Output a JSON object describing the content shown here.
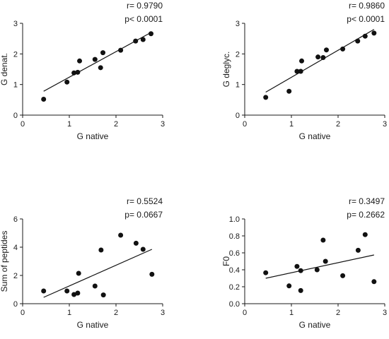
{
  "colors": {
    "background": "#ffffff",
    "axis": "#1a1a1a",
    "point": "#111111",
    "fit_line": "#111111"
  },
  "chart_data": [
    {
      "type": "scatter",
      "title": "",
      "xlabel": "G native",
      "ylabel": "G denat.",
      "xlim": [
        0,
        3
      ],
      "ylim": [
        0,
        3
      ],
      "xticks": [
        "0",
        "1",
        "2",
        "3"
      ],
      "yticks": [
        "0",
        "1",
        "2",
        "3"
      ],
      "points": [
        {
          "x": 0.45,
          "y": 0.52
        },
        {
          "x": 0.95,
          "y": 1.08
        },
        {
          "x": 1.1,
          "y": 1.38
        },
        {
          "x": 1.18,
          "y": 1.4
        },
        {
          "x": 1.22,
          "y": 1.77
        },
        {
          "x": 1.55,
          "y": 1.82
        },
        {
          "x": 1.67,
          "y": 1.55
        },
        {
          "x": 1.72,
          "y": 2.04
        },
        {
          "x": 2.1,
          "y": 2.12
        },
        {
          "x": 2.42,
          "y": 2.42
        },
        {
          "x": 2.58,
          "y": 2.47
        },
        {
          "x": 2.75,
          "y": 2.66
        }
      ],
      "fit": {
        "x": [
          0.45,
          2.75
        ],
        "y": [
          0.78,
          2.7
        ]
      },
      "annotations": [
        "r= 0.9790",
        "p< 0.0001"
      ],
      "grid": false,
      "legend": "none"
    },
    {
      "type": "scatter",
      "title": "",
      "xlabel": "G native",
      "ylabel": "G deglyc.",
      "xlim": [
        0,
        3
      ],
      "ylim": [
        0,
        3
      ],
      "xticks": [
        "0",
        "1",
        "2",
        "3"
      ],
      "yticks": [
        "0",
        "1",
        "2",
        "3"
      ],
      "points": [
        {
          "x": 0.45,
          "y": 0.58
        },
        {
          "x": 0.95,
          "y": 0.78
        },
        {
          "x": 1.12,
          "y": 1.43
        },
        {
          "x": 1.2,
          "y": 1.43
        },
        {
          "x": 1.22,
          "y": 1.77
        },
        {
          "x": 1.57,
          "y": 1.9
        },
        {
          "x": 1.68,
          "y": 1.88
        },
        {
          "x": 1.75,
          "y": 2.13
        },
        {
          "x": 2.1,
          "y": 2.16
        },
        {
          "x": 2.42,
          "y": 2.42
        },
        {
          "x": 2.58,
          "y": 2.58
        },
        {
          "x": 2.77,
          "y": 2.68
        }
      ],
      "fit": {
        "x": [
          0.45,
          2.77
        ],
        "y": [
          0.75,
          2.8
        ]
      },
      "annotations": [
        "r= 0.9860",
        "p< 0.0001"
      ],
      "grid": false,
      "legend": "none"
    },
    {
      "type": "scatter",
      "title": "",
      "xlabel": "G native",
      "ylabel": "Sum of peptides",
      "xlim": [
        0,
        3
      ],
      "ylim": [
        0,
        6
      ],
      "xticks": [
        "0",
        "1",
        "2",
        "3"
      ],
      "yticks": [
        "0",
        "2",
        "4",
        "6"
      ],
      "points": [
        {
          "x": 0.45,
          "y": 0.9
        },
        {
          "x": 0.95,
          "y": 0.9
        },
        {
          "x": 1.1,
          "y": 0.65
        },
        {
          "x": 1.18,
          "y": 0.75
        },
        {
          "x": 1.2,
          "y": 2.15
        },
        {
          "x": 1.55,
          "y": 1.25
        },
        {
          "x": 1.68,
          "y": 3.8
        },
        {
          "x": 1.73,
          "y": 0.62
        },
        {
          "x": 2.1,
          "y": 4.85
        },
        {
          "x": 2.43,
          "y": 4.28
        },
        {
          "x": 2.58,
          "y": 3.85
        },
        {
          "x": 2.77,
          "y": 2.08
        }
      ],
      "fit": {
        "x": [
          0.45,
          2.77
        ],
        "y": [
          0.45,
          3.85
        ]
      },
      "annotations": [
        "r= 0.5524",
        "p= 0.0667"
      ],
      "grid": false,
      "legend": "none"
    },
    {
      "type": "scatter",
      "title": "",
      "xlabel": "G native",
      "ylabel": "F0",
      "xlim": [
        0,
        3
      ],
      "ylim": [
        0,
        1.0
      ],
      "xticks": [
        "0",
        "1",
        "2",
        "3"
      ],
      "yticks": [
        "0.0",
        "0.2",
        "0.4",
        "0.6",
        "0.8",
        "1.0"
      ],
      "points": [
        {
          "x": 0.45,
          "y": 0.365
        },
        {
          "x": 0.95,
          "y": 0.21
        },
        {
          "x": 1.12,
          "y": 0.44
        },
        {
          "x": 1.2,
          "y": 0.155
        },
        {
          "x": 1.2,
          "y": 0.39
        },
        {
          "x": 1.55,
          "y": 0.4
        },
        {
          "x": 1.68,
          "y": 0.75
        },
        {
          "x": 1.73,
          "y": 0.5
        },
        {
          "x": 2.1,
          "y": 0.33
        },
        {
          "x": 2.43,
          "y": 0.63
        },
        {
          "x": 2.58,
          "y": 0.815
        },
        {
          "x": 2.77,
          "y": 0.26
        }
      ],
      "fit": {
        "x": [
          0.45,
          2.77
        ],
        "y": [
          0.3,
          0.575
        ]
      },
      "annotations": [
        "r= 0.3497",
        "p= 0.2662"
      ],
      "grid": false,
      "legend": "none"
    }
  ]
}
